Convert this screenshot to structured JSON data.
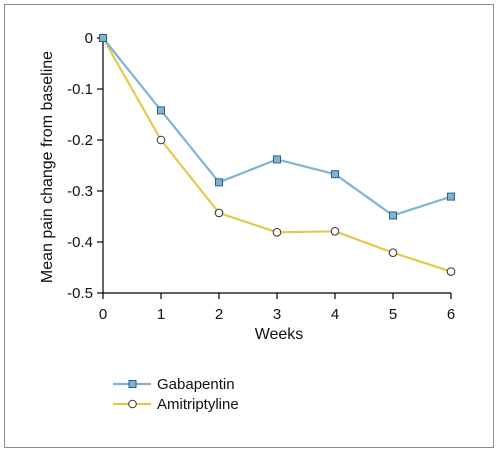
{
  "chart_data": {
    "type": "line",
    "xlabel": "Weeks",
    "ylabel": "Mean pain change from baseline",
    "x": [
      0,
      1,
      2,
      3,
      4,
      5,
      6
    ],
    "xlim": [
      0,
      6
    ],
    "ylim": [
      -0.5,
      0
    ],
    "xticks": [
      "0",
      "1",
      "2",
      "3",
      "4",
      "5",
      "6"
    ],
    "yticks": [
      "0",
      "-0.1",
      "-0.2",
      "-0.3",
      "-0.4",
      "-0.5"
    ],
    "ytick_values": [
      0,
      -0.1,
      -0.2,
      -0.3,
      -0.4,
      -0.5
    ],
    "grid": false,
    "legend_position": "bottom-left",
    "series": [
      {
        "name": "Gabapentin",
        "values": [
          0,
          -0.142,
          -0.283,
          -0.238,
          -0.267,
          -0.348,
          -0.311
        ],
        "color": "#7fb4d5",
        "marker": "square",
        "marker_color": "#7fb4d5"
      },
      {
        "name": "Amitriptyline",
        "values": [
          0,
          -0.2,
          -0.343,
          -0.381,
          -0.379,
          -0.421,
          -0.458
        ],
        "color": "#e8c84a",
        "marker": "circle",
        "marker_color": "#ffffff"
      }
    ]
  }
}
